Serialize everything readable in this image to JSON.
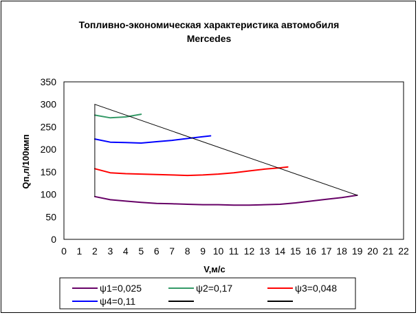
{
  "chart_data": {
    "type": "line",
    "title": "Топливно-экономическая характеристика автомобиля",
    "subtitle": "Mercedes",
    "xlabel": "V,м/с",
    "ylabel": "Qп,л/100кмп",
    "xlim": [
      0,
      22
    ],
    "ylim": [
      0,
      350
    ],
    "x_ticks": [
      "0",
      "1",
      "2",
      "3",
      "4",
      "5",
      "6",
      "7",
      "8",
      "9",
      "10",
      "11",
      "12",
      "13",
      "14",
      "15",
      "16",
      "17",
      "18",
      "19",
      "20",
      "21",
      "22"
    ],
    "y_ticks": [
      "0",
      "50",
      "100",
      "150",
      "200",
      "250",
      "300",
      "350"
    ],
    "grid": true,
    "legend_position": "bottom",
    "series": [
      {
        "name": "ψ1=0,025",
        "color": "#660066",
        "x": [
          2,
          3,
          4,
          5,
          6,
          7,
          8,
          9,
          10,
          11,
          12,
          13,
          14,
          15,
          16,
          17,
          18,
          19
        ],
        "y": [
          95,
          88,
          85,
          82,
          80,
          79,
          78,
          77,
          77,
          76,
          76,
          77,
          78,
          81,
          85,
          89,
          93,
          98
        ]
      },
      {
        "name": "ψ2=0,17",
        "color": "#339966",
        "x": [
          2,
          3,
          4,
          5
        ],
        "y": [
          276,
          270,
          272,
          278
        ]
      },
      {
        "name": "ψ3=0,048",
        "color": "#ff0000",
        "x": [
          2,
          3,
          4,
          5,
          6,
          7,
          8,
          9,
          10,
          11,
          12,
          13,
          14,
          14.5
        ],
        "y": [
          157,
          148,
          146,
          145,
          144,
          143,
          142,
          143,
          145,
          148,
          152,
          156,
          159,
          161
        ]
      },
      {
        "name": "ψ4=0,11",
        "color": "#0000ff",
        "x": [
          2,
          3,
          4,
          5,
          6,
          7,
          8,
          9,
          9.5
        ],
        "y": [
          223,
          216,
          215,
          214,
          217,
          220,
          224,
          228,
          230
        ]
      },
      {
        "name": "",
        "color": "#000000",
        "x": [
          2,
          19
        ],
        "y": [
          300,
          98
        ]
      },
      {
        "name": "",
        "color": "#000000",
        "x": [
          2,
          2
        ],
        "y": [
          95,
          300
        ]
      }
    ]
  }
}
